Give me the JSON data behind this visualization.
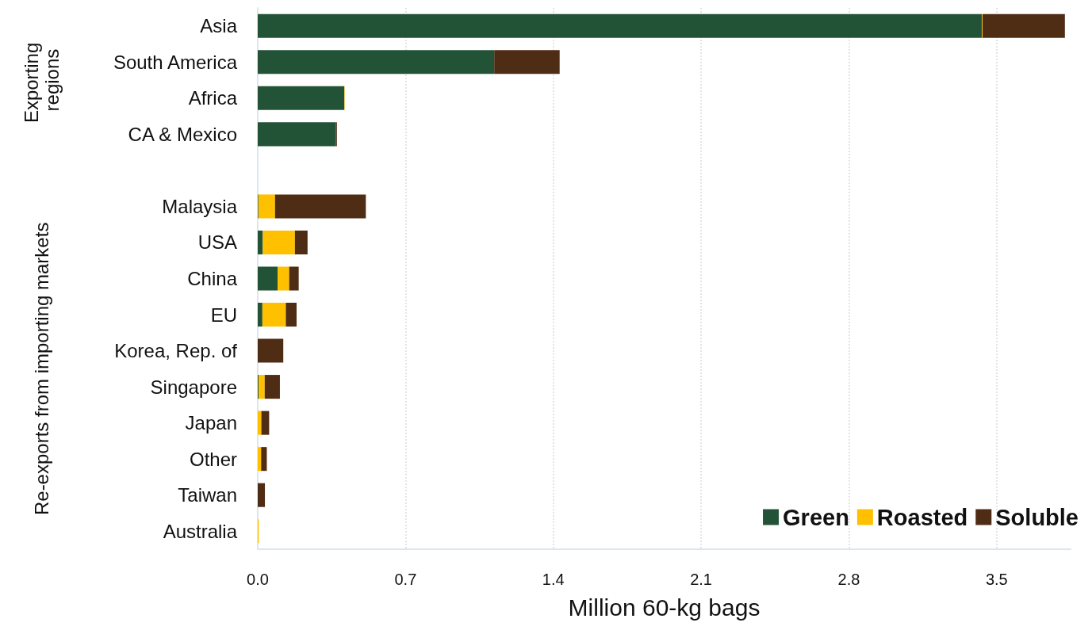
{
  "chart_data": {
    "type": "bar",
    "orientation": "horizontal",
    "stacked": true,
    "xlabel": "Million 60-kg bags",
    "annotations": [
      "Exporting regions",
      "Re-exports from importing markets"
    ],
    "categories": [
      "Asia",
      "South America",
      "Africa",
      "CA & Mexico",
      null,
      "Malaysia",
      "USA",
      "China",
      "EU",
      "Korea, Rep. of",
      "Singapore",
      "Japan",
      "Other",
      "Taiwan",
      "Australia"
    ],
    "series": [
      {
        "name": "Green",
        "color": "#235337",
        "values": [
          3.43,
          1.12,
          0.41,
          0.37,
          null,
          0.003,
          0.024,
          0.094,
          0.022,
          0,
          0.004,
          0,
          0,
          0,
          0
        ]
      },
      {
        "name": "Roasted",
        "color": "#ffc000",
        "values": [
          0.003,
          0,
          0.002,
          0,
          null,
          0.079,
          0.152,
          0.055,
          0.111,
          0,
          0.029,
          0.017,
          0.016,
          0,
          0.005
        ]
      },
      {
        "name": "Soluble",
        "color": "#4f2c14",
        "values": [
          0.39,
          0.31,
          0,
          0.005,
          null,
          0.43,
          0.06,
          0.045,
          0.051,
          0.121,
          0.072,
          0.037,
          0.027,
          0.034,
          0
        ]
      }
    ],
    "xlim": [
      0,
      3.85
    ],
    "xticks": [
      {
        "value": 0,
        "label": "0.0"
      },
      {
        "value": 0.7,
        "label": "0.7"
      },
      {
        "value": 1.4,
        "label": "1.4"
      },
      {
        "value": 2.1,
        "label": "2.1"
      },
      {
        "value": 2.8,
        "label": "2.8"
      },
      {
        "value": 3.5,
        "label": "3.5"
      }
    ],
    "grid": "x",
    "legend": "bottom right"
  }
}
